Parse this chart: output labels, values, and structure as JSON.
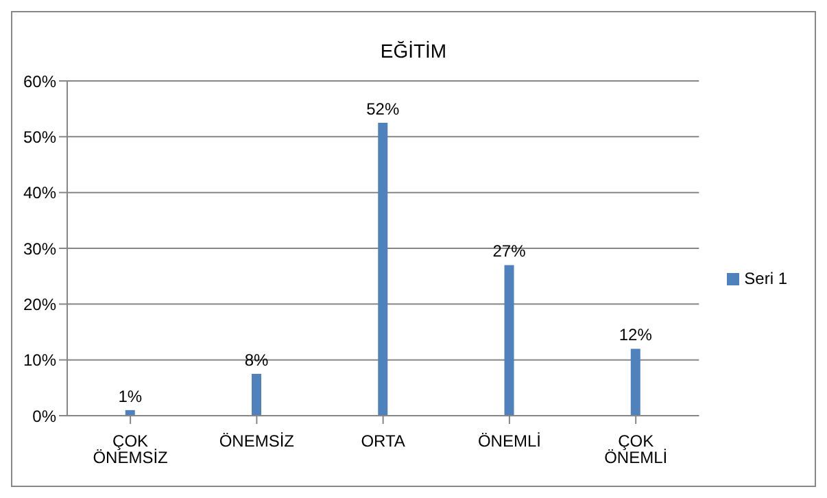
{
  "chart_data": {
    "type": "bar",
    "title": "EĞİTİM",
    "categories": [
      "ÇOK ÖNEMSİZ",
      "ÖNEMSİZ",
      "ORTA",
      "ÖNEMLİ",
      "ÇOK ÖNEMLİ"
    ],
    "series": [
      {
        "name": "Seri 1",
        "color": "#4f81bd",
        "values": [
          1,
          7.5,
          52.5,
          27,
          12
        ],
        "value_labels": [
          "1%",
          "8%",
          "52%",
          "27%",
          "12%"
        ]
      }
    ],
    "ylim": [
      0,
      60
    ],
    "yticks": [
      {
        "value": 0,
        "label": "0%"
      },
      {
        "value": 10,
        "label": "10%"
      },
      {
        "value": 20,
        "label": "20%"
      },
      {
        "value": 30,
        "label": "30%"
      },
      {
        "value": 40,
        "label": "40%"
      },
      {
        "value": 50,
        "label": "50%"
      },
      {
        "value": 60,
        "label": "60%"
      }
    ],
    "grid": "y",
    "legend": "right"
  }
}
